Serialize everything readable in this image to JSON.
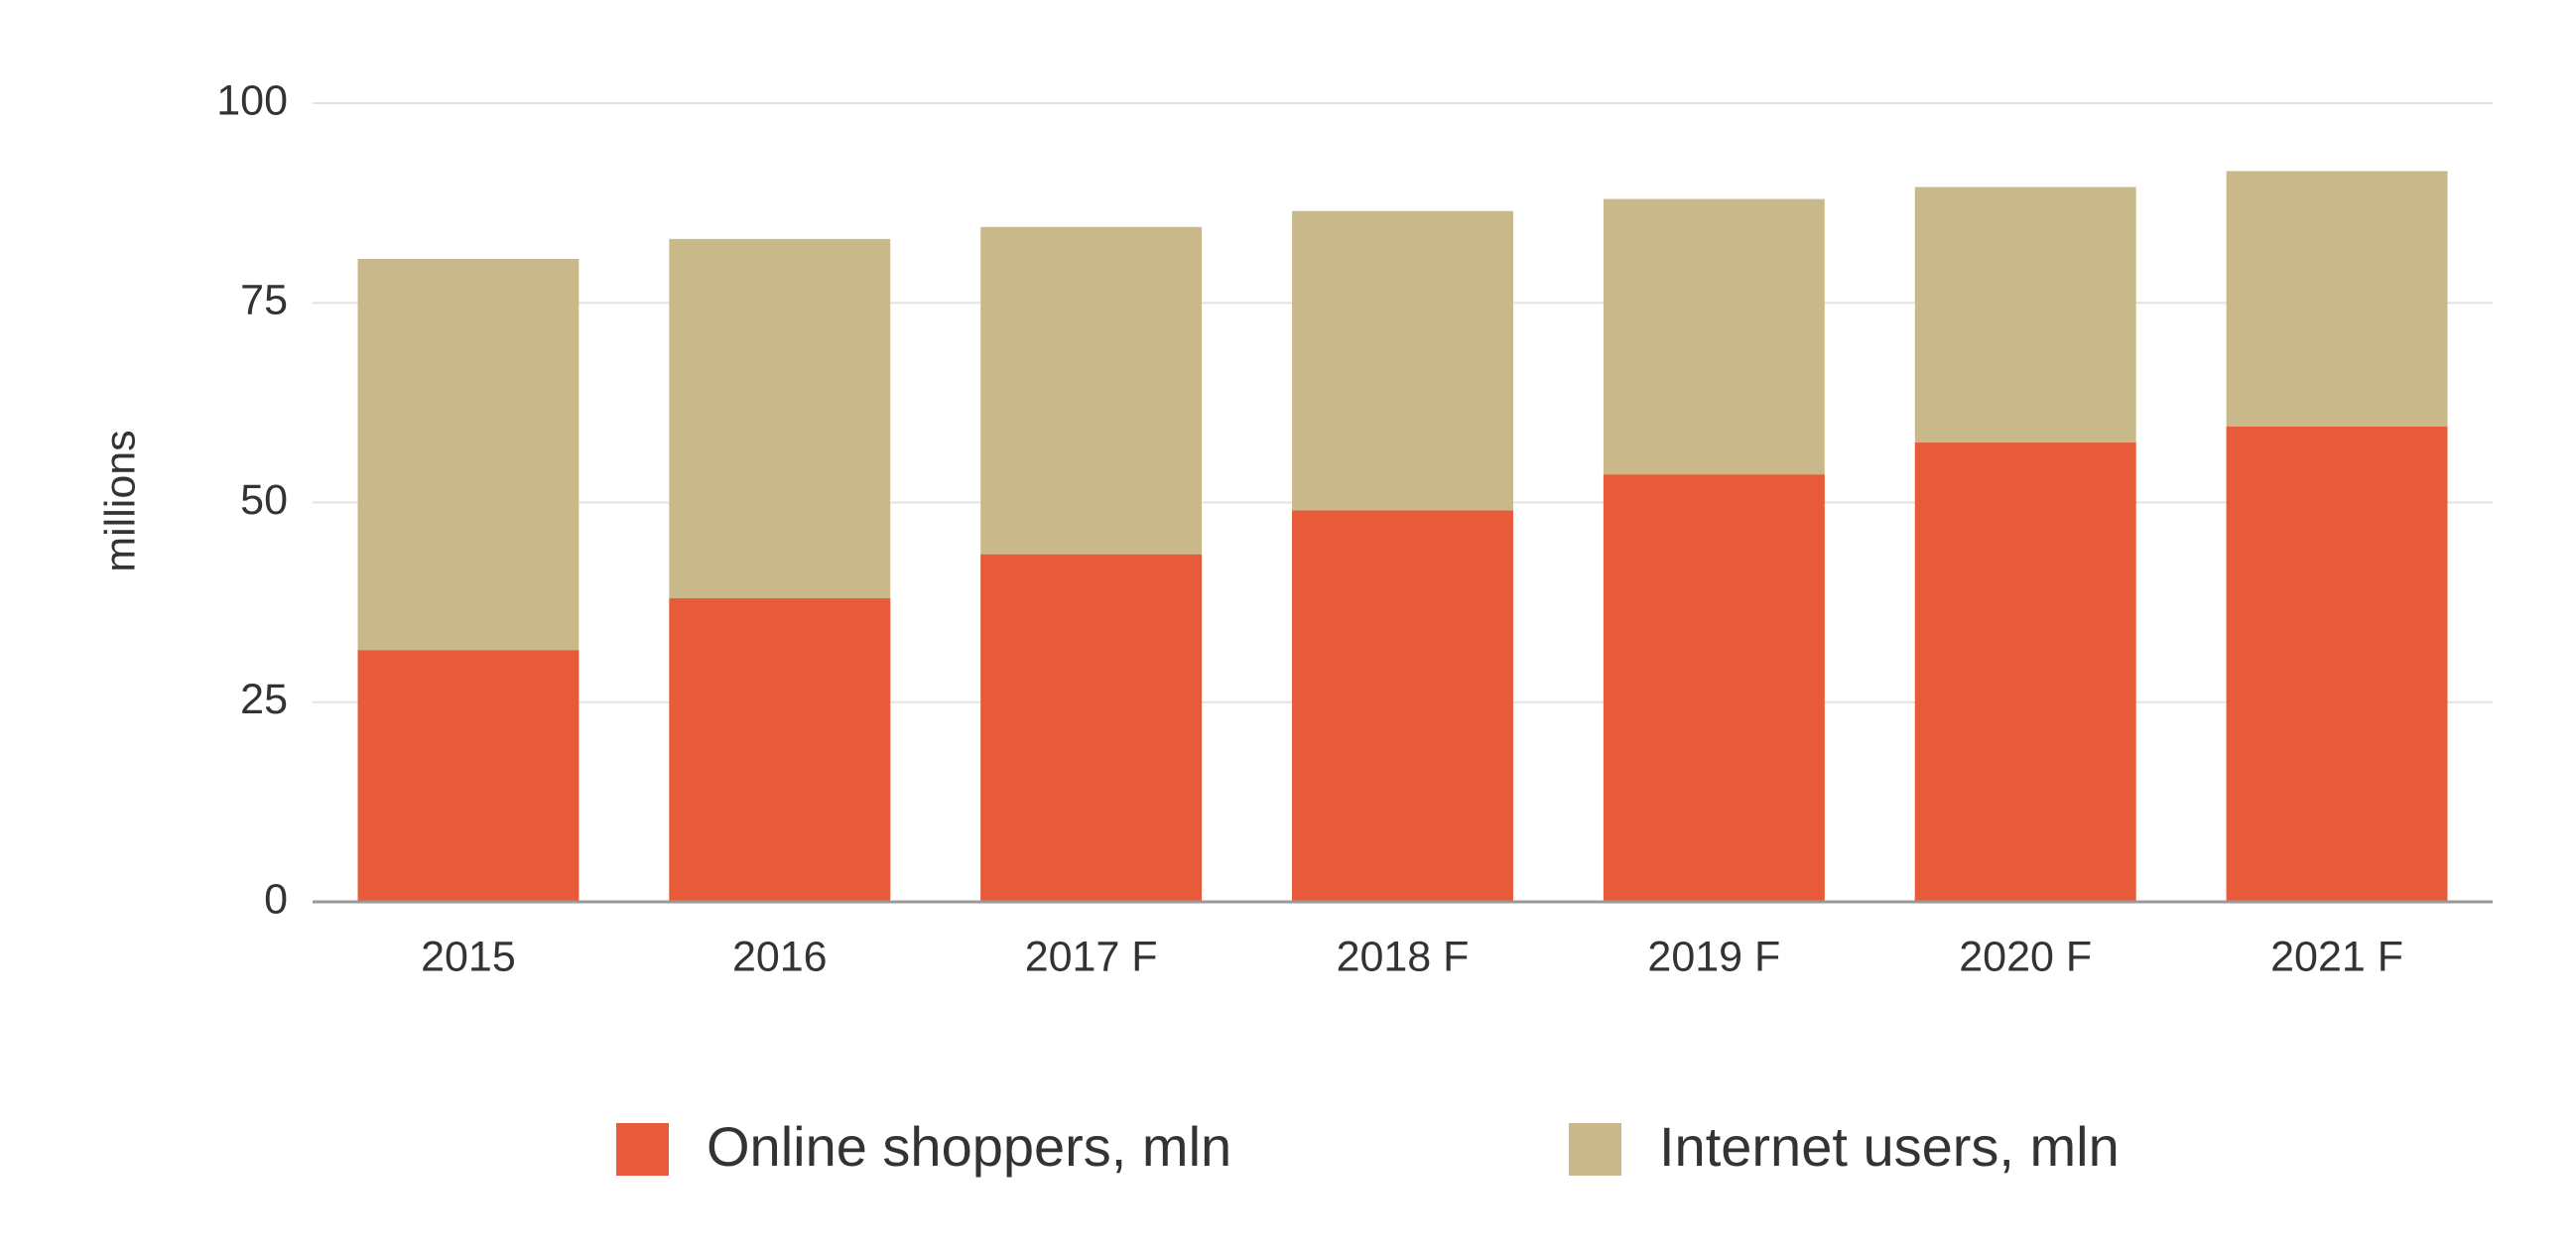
{
  "chart_data": {
    "type": "bar",
    "y_label": "millions",
    "categories": [
      "2015",
      "2016",
      "2017 F",
      "2018 F",
      "2019 F",
      "2020 F",
      "2021 F"
    ],
    "series": [
      {
        "name": "Internet users, mln",
        "color": "#c8b88a",
        "values": [
          80.5,
          83,
          84.5,
          86.5,
          88,
          89.5,
          91.5
        ]
      },
      {
        "name": "Online shoppers, mln",
        "color": "#e85b3a",
        "values": [
          31.5,
          38,
          43.5,
          49,
          53.5,
          57.5,
          59.5
        ]
      }
    ],
    "ylim": [
      0,
      100
    ],
    "yticks": [
      0,
      25,
      50,
      75,
      100
    ],
    "grid": true
  }
}
